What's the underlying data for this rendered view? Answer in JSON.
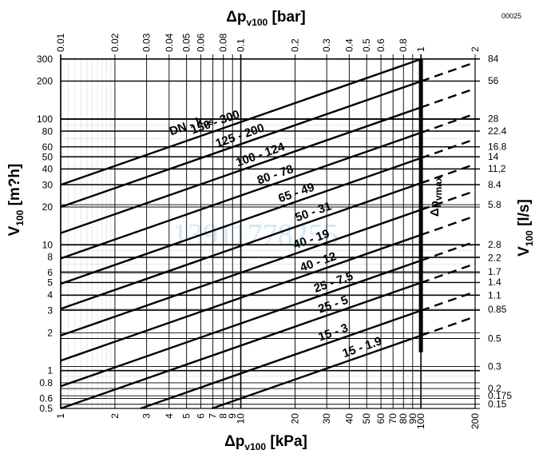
{
  "figure_code": "00025",
  "watermark": "13911778255",
  "chart_data": {
    "type": "line",
    "x_scale": "log",
    "y_scale": "log",
    "grid": true,
    "xlim": [
      1,
      200
    ],
    "ylim": [
      0.5,
      300
    ],
    "x_bottom": {
      "title": "Δp",
      "title_sub": "v100",
      "title_unit": "[kPa]",
      "ticks": [
        {
          "v": 1,
          "label": "1"
        },
        {
          "v": 2,
          "label": "2"
        },
        {
          "v": 3,
          "label": "3"
        },
        {
          "v": 4,
          "label": "4"
        },
        {
          "v": 5,
          "label": "5"
        },
        {
          "v": 6,
          "label": "6"
        },
        {
          "v": 7,
          "label": "7"
        },
        {
          "v": 8,
          "label": "8"
        },
        {
          "v": 9,
          "label": "9"
        },
        {
          "v": 10,
          "label": "10"
        },
        {
          "v": 20,
          "label": "20"
        },
        {
          "v": 30,
          "label": "30"
        },
        {
          "v": 40,
          "label": "40"
        },
        {
          "v": 50,
          "label": "50"
        },
        {
          "v": 60,
          "label": "60"
        },
        {
          "v": 70,
          "label": "70"
        },
        {
          "v": 80,
          "label": "80"
        },
        {
          "v": 90,
          "label": "90"
        },
        {
          "v": 100,
          "label": "100"
        },
        {
          "v": 200,
          "label": "200"
        }
      ]
    },
    "x_top": {
      "title": "Δp",
      "title_sub": "v100",
      "title_unit": "[bar]",
      "ticks": [
        {
          "v": 1,
          "label": "0.01"
        },
        {
          "v": 2,
          "label": "0.02"
        },
        {
          "v": 3,
          "label": "0.03"
        },
        {
          "v": 4,
          "label": "0.04"
        },
        {
          "v": 5,
          "label": "0.05"
        },
        {
          "v": 6,
          "label": "0.06"
        },
        {
          "v": 8,
          "label": "0.08"
        },
        {
          "v": 10,
          "label": "0.1"
        },
        {
          "v": 20,
          "label": "0.2"
        },
        {
          "v": 30,
          "label": "0.3"
        },
        {
          "v": 40,
          "label": "0.4"
        },
        {
          "v": 50,
          "label": "0.5"
        },
        {
          "v": 60,
          "label": "0.6"
        },
        {
          "v": 80,
          "label": "0.8"
        },
        {
          "v": 100,
          "label": "1"
        },
        {
          "v": 200,
          "label": "2"
        }
      ]
    },
    "y_left": {
      "title": "V",
      "title_sub": "100",
      "title_unit": "[m?h]",
      "ticks": [
        {
          "v": 0.5,
          "label": "0.5"
        },
        {
          "v": 0.6,
          "label": "0.6"
        },
        {
          "v": 0.8,
          "label": "0.8"
        },
        {
          "v": 1,
          "label": "1"
        },
        {
          "v": 2,
          "label": "2"
        },
        {
          "v": 3,
          "label": "3"
        },
        {
          "v": 4,
          "label": "4"
        },
        {
          "v": 5,
          "label": "5"
        },
        {
          "v": 6,
          "label": "6"
        },
        {
          "v": 8,
          "label": "8"
        },
        {
          "v": 10,
          "label": "10"
        },
        {
          "v": 20,
          "label": "20"
        },
        {
          "v": 30,
          "label": "30"
        },
        {
          "v": 40,
          "label": "40"
        },
        {
          "v": 50,
          "label": "50"
        },
        {
          "v": 60,
          "label": "60"
        },
        {
          "v": 80,
          "label": "80"
        },
        {
          "v": 100,
          "label": "100"
        },
        {
          "v": 200,
          "label": "200"
        },
        {
          "v": 300,
          "label": "300"
        }
      ]
    },
    "y_right": {
      "title": "V",
      "title_sub": "100",
      "title_unit": "[l/s]",
      "ticks": [
        {
          "v": 0.54,
          "label": "0.15"
        },
        {
          "v": 0.63,
          "label": "0.175"
        },
        {
          "v": 0.72,
          "label": "0.2"
        },
        {
          "v": 1.08,
          "label": "0.3"
        },
        {
          "v": 1.8,
          "label": "0.5"
        },
        {
          "v": 3.06,
          "label": "0.85"
        },
        {
          "v": 3.96,
          "label": "1.1"
        },
        {
          "v": 5.04,
          "label": "1.4"
        },
        {
          "v": 6.12,
          "label": "1.7"
        },
        {
          "v": 7.92,
          "label": "2.2"
        },
        {
          "v": 10.08,
          "label": "2.8"
        },
        {
          "v": 20.88,
          "label": "5.8"
        },
        {
          "v": 30.24,
          "label": "8.4"
        },
        {
          "v": 40.32,
          "label": "11,2"
        },
        {
          "v": 50.4,
          "label": "14"
        },
        {
          "v": 60.48,
          "label": "16.8"
        },
        {
          "v": 80.64,
          "label": "22.4"
        },
        {
          "v": 100.8,
          "label": "28"
        },
        {
          "v": 201.6,
          "label": "56"
        },
        {
          "v": 302.4,
          "label": "84"
        }
      ]
    },
    "series_header": "DN - kvs",
    "series_header_main": "DN - k",
    "series_header_sub": "vs",
    "series": [
      {
        "name": "150 - 300",
        "kvs": 300
      },
      {
        "name": "125 - 200",
        "kvs": 200
      },
      {
        "name": "100 - 124",
        "kvs": 124
      },
      {
        "name": "80 - 78",
        "kvs": 78
      },
      {
        "name": "65 - 49",
        "kvs": 49
      },
      {
        "name": "50 - 31",
        "kvs": 31
      },
      {
        "name": "40 - 19",
        "kvs": 19
      },
      {
        "name": "40 - 12",
        "kvs": 12
      },
      {
        "name": "25 - 7.5",
        "kvs": 7.5
      },
      {
        "name": "25 - 5",
        "kvs": 5
      },
      {
        "name": "15 - 3",
        "kvs": 3
      },
      {
        "name": "15 - 1.9",
        "kvs": 1.9
      }
    ],
    "max_line": {
      "label": "Δp",
      "label_sub": "vmax",
      "x": 100,
      "y_from": 1.4,
      "y_to": 300
    }
  }
}
